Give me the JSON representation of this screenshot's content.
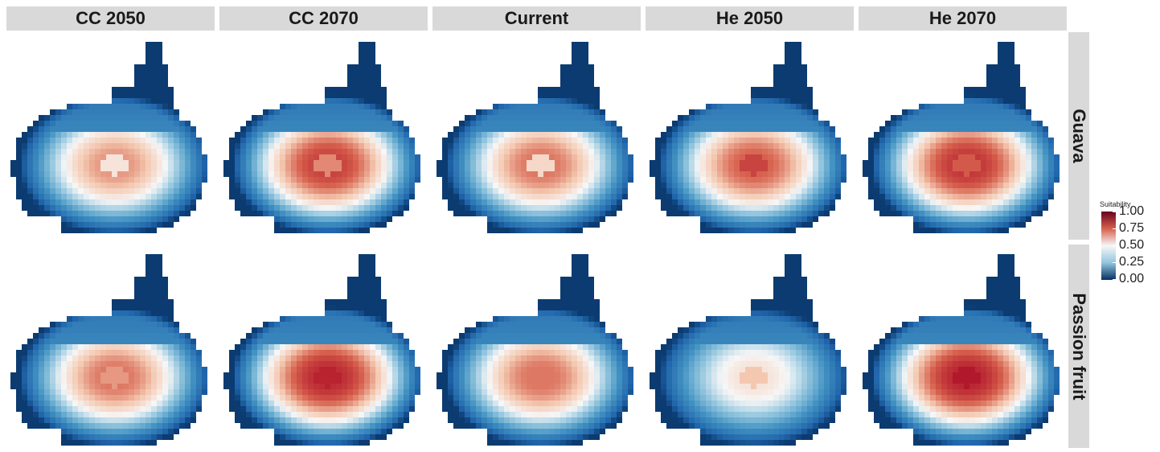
{
  "chart_data": {
    "type": "heatmap",
    "facet_columns": [
      "CC 2050",
      "CC 2070",
      "Current",
      "He 2050",
      "He 2070"
    ],
    "facet_rows": [
      "Guava",
      "Passion fruit"
    ],
    "legend": {
      "title": "Suitability",
      "ticks": [
        "1.00",
        "0.75",
        "0.50",
        "0.25",
        "0.00"
      ],
      "range": [
        0,
        1
      ],
      "colors": [
        "#67001f",
        "#d6604d",
        "#f7f7f7",
        "#92c5de",
        "#053061"
      ]
    },
    "panels": [
      {
        "row": "Guava",
        "column": "CC 2050",
        "peak_suitability": 0.68,
        "center_dip": 0.55
      },
      {
        "row": "Guava",
        "column": "CC 2070",
        "peak_suitability": 0.8,
        "center_dip": 0.7
      },
      {
        "row": "Guava",
        "column": "Current",
        "peak_suitability": 0.72,
        "center_dip": 0.58
      },
      {
        "row": "Guava",
        "column": "He 2050",
        "peak_suitability": 0.75,
        "center_dip": 0.8
      },
      {
        "row": "Guava",
        "column": "He 2070",
        "peak_suitability": 0.82,
        "center_dip": 0.76
      },
      {
        "row": "Passion fruit",
        "column": "CC 2050",
        "peak_suitability": 0.72,
        "center_dip": 0.68
      },
      {
        "row": "Passion fruit",
        "column": "CC 2070",
        "peak_suitability": 0.84,
        "center_dip": 0.86
      },
      {
        "row": "Passion fruit",
        "column": "Current",
        "peak_suitability": 0.72,
        "center_dip": 0.72
      },
      {
        "row": "Passion fruit",
        "column": "He 2050",
        "peak_suitability": 0.55,
        "center_dip": 0.62
      },
      {
        "row": "Passion fruit",
        "column": "He 2070",
        "peak_suitability": 0.85,
        "center_dip": 0.88
      }
    ]
  }
}
